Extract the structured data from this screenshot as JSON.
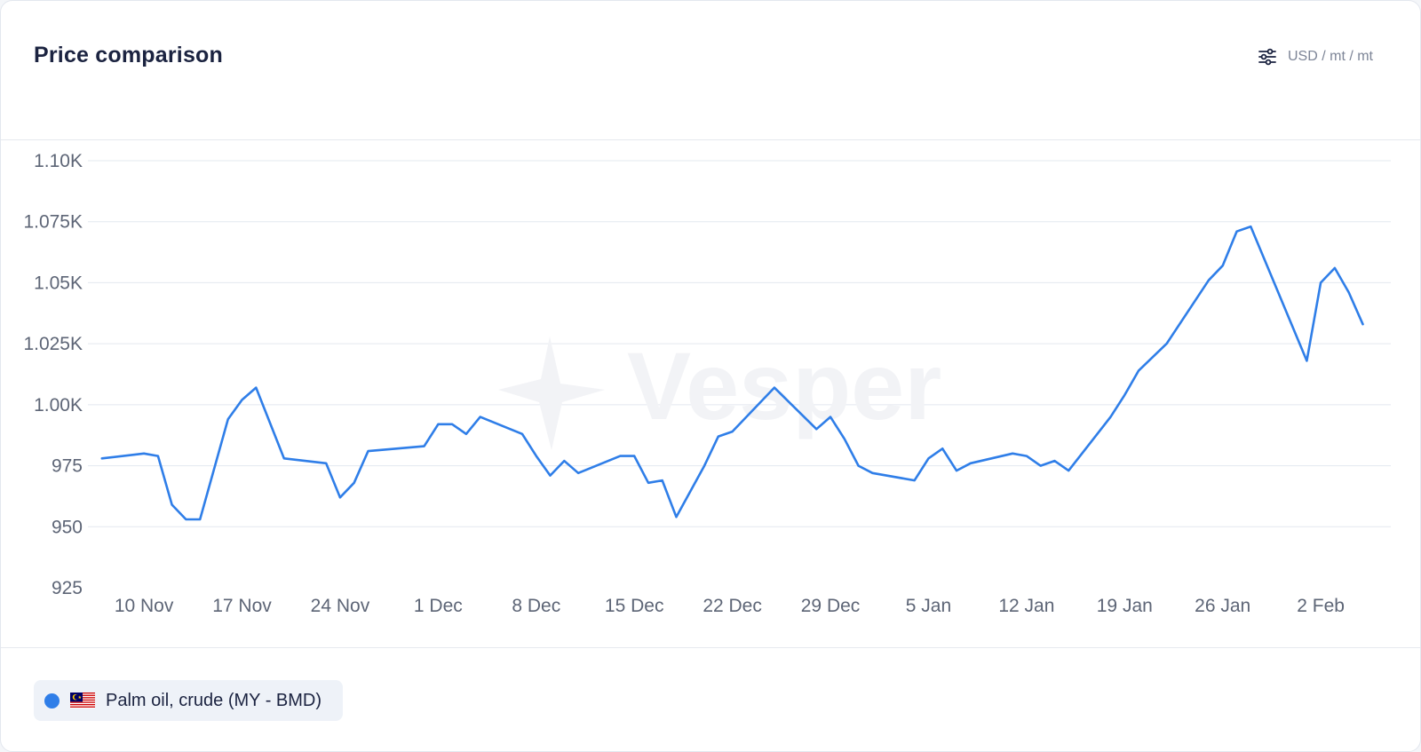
{
  "header": {
    "title": "Price comparison",
    "unit_label": "USD / mt / mt",
    "unit_icon": "sliders-icon"
  },
  "watermark": {
    "text": "Vesper"
  },
  "legend": [
    {
      "label": "Palm oil, crude (MY - BMD)",
      "color": "#2f7ee8",
      "icon": "malaysia-flag-icon"
    }
  ],
  "chart_data": {
    "type": "line",
    "x_type": "date",
    "x_range": [
      "2023-11-06",
      "2024-02-07"
    ],
    "ylim": [
      925,
      1100
    ],
    "y_ticks": [
      925,
      950,
      975,
      1000,
      1025,
      1050,
      1075,
      1100
    ],
    "y_tick_labels": [
      "925",
      "950",
      "975",
      "1.00K",
      "1.025K",
      "1.05K",
      "1.075K",
      "1.10K"
    ],
    "x_ticks": [
      "2023-11-10",
      "2023-11-17",
      "2023-11-24",
      "2023-12-01",
      "2023-12-08",
      "2023-12-15",
      "2023-12-22",
      "2023-12-29",
      "2024-01-05",
      "2024-01-12",
      "2024-01-19",
      "2024-01-26",
      "2024-02-02"
    ],
    "x_tick_labels": [
      "10 Nov",
      "17 Nov",
      "24 Nov",
      "1 Dec",
      "8 Dec",
      "15 Dec",
      "22 Dec",
      "29 Dec",
      "5 Jan",
      "12 Jan",
      "19 Jan",
      "26 Jan",
      "2 Feb"
    ],
    "grid": true,
    "color": "#2f7ee8",
    "series": [
      {
        "name": "Palm oil, crude (MY - BMD)",
        "x": [
          "2023-11-07",
          "2023-11-10",
          "2023-11-11",
          "2023-11-12",
          "2023-11-13",
          "2023-11-14",
          "2023-11-16",
          "2023-11-17",
          "2023-11-18",
          "2023-11-20",
          "2023-11-23",
          "2023-11-24",
          "2023-11-25",
          "2023-11-26",
          "2023-11-30",
          "2023-12-01",
          "2023-12-02",
          "2023-12-03",
          "2023-12-04",
          "2023-12-07",
          "2023-12-08",
          "2023-12-09",
          "2023-12-10",
          "2023-12-11",
          "2023-12-14",
          "2023-12-15",
          "2023-12-16",
          "2023-12-17",
          "2023-12-18",
          "2023-12-20",
          "2023-12-21",
          "2023-12-22",
          "2023-12-25",
          "2023-12-28",
          "2023-12-29",
          "2023-12-30",
          "2023-12-31",
          "2024-01-01",
          "2024-01-04",
          "2024-01-05",
          "2024-01-06",
          "2024-01-07",
          "2024-01-08",
          "2024-01-11",
          "2024-01-12",
          "2024-01-13",
          "2024-01-14",
          "2024-01-15",
          "2024-01-18",
          "2024-01-19",
          "2024-01-20",
          "2024-01-22",
          "2024-01-25",
          "2024-01-26",
          "2024-01-27",
          "2024-01-28",
          "2024-02-01",
          "2024-02-02",
          "2024-02-03",
          "2024-02-04",
          "2024-02-05"
        ],
        "y": [
          978,
          980,
          979,
          959,
          953,
          953,
          994,
          1002,
          1007,
          978,
          976,
          962,
          968,
          981,
          983,
          992,
          992,
          988,
          995,
          988,
          979,
          971,
          977,
          972,
          979,
          979,
          968,
          969,
          954,
          975,
          987,
          989,
          1007,
          990,
          995,
          986,
          975,
          972,
          969,
          978,
          982,
          973,
          976,
          980,
          979,
          975,
          977,
          973,
          995,
          1004,
          1014,
          1025,
          1051,
          1057,
          1071,
          1073,
          1018,
          1050,
          1056,
          1046,
          1033
        ]
      }
    ]
  }
}
